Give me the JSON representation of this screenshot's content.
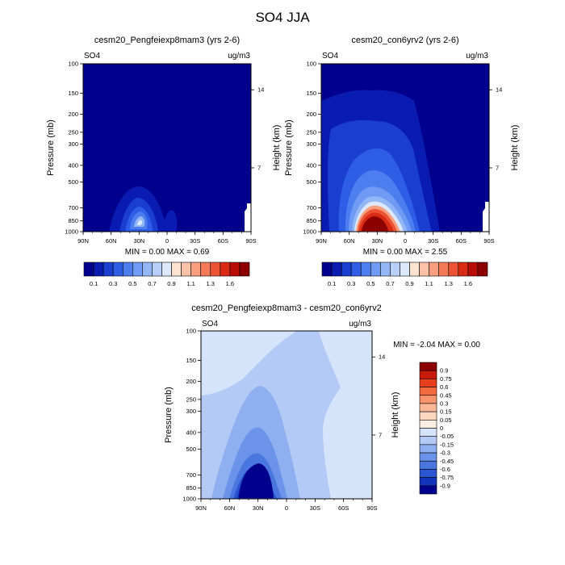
{
  "figure_title": "SO4 JJA",
  "panels": {
    "mam3": {
      "title": "cesm20_Pengfeiexp8mam3 (yrs 2-6)",
      "var_label": "SO4",
      "units": "ug/m3",
      "stats": "MIN =   0.00  MAX =    0.69",
      "ylabel_left": "Pressure (mb)",
      "ylabel_right": "Height (km)"
    },
    "con6": {
      "title": "cesm20_con6yrv2 (yrs 2-6)",
      "var_label": "SO4",
      "units": "ug/m3",
      "stats": "MIN =   0.00  MAX =    2.55",
      "ylabel_left": "Pressure (mb)",
      "ylabel_right": "Height (km)"
    },
    "diff": {
      "title": "cesm20_Pengfeiexp8mam3 - cesm20_con6yrv2",
      "var_label": "SO4",
      "units": "ug/m3",
      "stats": "MIN =   -2.04  MAX =    0.00",
      "ylabel_left": "Pressure (mb)",
      "ylabel_right": "Height (km)"
    }
  },
  "chart_data": [
    {
      "type": "heatmap",
      "title": "cesm20_Pengfeiexp8mam3 (yrs 2-6)",
      "x_ticks": [
        "90N",
        "60N",
        "30N",
        "0",
        "30S",
        "60S",
        "90S"
      ],
      "y_ticks": [
        "100",
        "150",
        "200",
        "250",
        "300",
        "400",
        "500",
        "700",
        "850",
        "1000"
      ],
      "y_ticks_right": [
        "14",
        "7"
      ],
      "ylabel": "Pressure (mb)",
      "ylabel_right": "Height (km)",
      "units": "ug/m3",
      "min": 0.0,
      "max": 0.69,
      "colorbar": {
        "levels": [
          "0.1",
          "0.3",
          "0.5",
          "0.7",
          "0.9",
          "1.1",
          "1.3",
          "1.6"
        ],
        "colors": [
          "#00008e",
          "#0a1bb2",
          "#1a3fd0",
          "#2f5ee6",
          "#4d7ef0",
          "#6f9bf4",
          "#93b6f7",
          "#b7cff9",
          "#dce9fb",
          "#fde3d0",
          "#fbc2a7",
          "#f99f7f",
          "#f47a57",
          "#ec5334",
          "#d92a14",
          "#b80d06",
          "#8c0000"
        ]
      }
    },
    {
      "type": "heatmap",
      "title": "cesm20_con6yrv2 (yrs 2-6)",
      "x_ticks": [
        "90N",
        "60N",
        "30N",
        "0",
        "30S",
        "60S",
        "90S"
      ],
      "y_ticks": [
        "100",
        "150",
        "200",
        "250",
        "300",
        "400",
        "500",
        "700",
        "850",
        "1000"
      ],
      "y_ticks_right": [
        "14",
        "7"
      ],
      "ylabel": "Pressure (mb)",
      "ylabel_right": "Height (km)",
      "units": "ug/m3",
      "min": 0.0,
      "max": 2.55,
      "colorbar": {
        "levels": [
          "0.1",
          "0.3",
          "0.5",
          "0.7",
          "0.9",
          "1.1",
          "1.3",
          "1.6"
        ],
        "colors": [
          "#00008e",
          "#0a1bb2",
          "#1a3fd0",
          "#2f5ee6",
          "#4d7ef0",
          "#6f9bf4",
          "#93b6f7",
          "#b7cff9",
          "#dce9fb",
          "#fde3d0",
          "#fbc2a7",
          "#f99f7f",
          "#f47a57",
          "#ec5334",
          "#d92a14",
          "#b80d06",
          "#8c0000"
        ]
      }
    },
    {
      "type": "heatmap",
      "title": "cesm20_Pengfeiexp8mam3 - cesm20_con6yrv2",
      "x_ticks": [
        "90N",
        "60N",
        "30N",
        "0",
        "30S",
        "60S",
        "90S"
      ],
      "y_ticks": [
        "100",
        "150",
        "200",
        "250",
        "300",
        "400",
        "500",
        "700",
        "850",
        "1000"
      ],
      "y_ticks_right": [
        "14",
        "7"
      ],
      "ylabel": "Pressure (mb)",
      "ylabel_right": "Height (km)",
      "units": "ug/m3",
      "min": -2.04,
      "max": 0.0,
      "colorbar": {
        "levels": [
          "0.9",
          "0.75",
          "0.6",
          "0.45",
          "0.3",
          "0.15",
          "0.05",
          "0",
          "-0.05",
          "-0.15",
          "-0.3",
          "-0.45",
          "-0.6",
          "-0.75",
          "-0.9"
        ],
        "colors": [
          "#8c0000",
          "#c81a0a",
          "#e8401f",
          "#f46a3f",
          "#f8946c",
          "#fab896",
          "#fcd6bf",
          "#fdeee2",
          "#d6e4fb",
          "#b3caf6",
          "#8fb0f0",
          "#6b93e9",
          "#4a76e0",
          "#2b56d2",
          "#1234bb",
          "#00008e"
        ]
      }
    }
  ]
}
